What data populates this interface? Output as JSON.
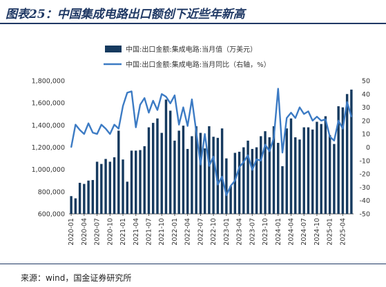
{
  "figure": {
    "title": "图表25：中国集成电路出口额创下近些年新高",
    "source": "来源：wind，国金证券研究所"
  },
  "chart_data": {
    "type": "bar+line",
    "x": [
      "2020-01",
      "2020-02",
      "2020-03",
      "2020-04",
      "2020-05",
      "2020-06",
      "2020-07",
      "2020-08",
      "2020-09",
      "2020-10",
      "2020-11",
      "2020-12",
      "2021-01",
      "2021-02",
      "2021-03",
      "2021-04",
      "2021-05",
      "2021-06",
      "2021-07",
      "2021-08",
      "2021-09",
      "2021-10",
      "2021-11",
      "2021-12",
      "2022-01",
      "2022-02",
      "2022-03",
      "2022-04",
      "2022-05",
      "2022-06",
      "2022-07",
      "2022-08",
      "2022-09",
      "2022-10",
      "2022-11",
      "2022-12",
      "2023-01",
      "2023-02",
      "2023-03",
      "2023-04",
      "2023-05",
      "2023-06",
      "2023-07",
      "2023-08",
      "2023-09",
      "2023-10",
      "2023-11",
      "2023-12",
      "2024-01",
      "2024-02",
      "2024-03",
      "2024-04",
      "2024-05",
      "2024-06",
      "2024-07",
      "2024-08",
      "2024-09",
      "2024-10",
      "2024-11",
      "2024-12",
      "2025-01",
      "2025-02",
      "2025-03",
      "2025-04",
      "2025-05",
      "2025-06"
    ],
    "xtick_labels": [
      "2020-01",
      "2020-04",
      "2020-07",
      "2020-10",
      "2021-01",
      "2021-04",
      "2021-07",
      "2021-10",
      "2022-01",
      "2022-04",
      "2022-07",
      "2022-10",
      "2023-01",
      "2023-04",
      "2023-07",
      "2023-10",
      "2024-01",
      "2024-04",
      "2024-07",
      "2024-10",
      "2025-01",
      "2025-04"
    ],
    "series": [
      {
        "name": "中国:出口金额:集成电路:当月值（万美元）",
        "kind": "bar",
        "axis": "left",
        "color": "#163a5f",
        "values": [
          760000,
          740000,
          880000,
          870000,
          900000,
          905000,
          1070000,
          1050000,
          1095000,
          1070000,
          1110000,
          1350000,
          1090000,
          890000,
          1170000,
          1170000,
          1175000,
          1210000,
          1380000,
          1420000,
          1460000,
          1330000,
          1630000,
          1530000,
          1260000,
          1350000,
          1395000,
          1185000,
          1300000,
          1390000,
          1330000,
          1190000,
          1390000,
          1295000,
          1285000,
          1370000,
          1100000,
          850000,
          1150000,
          1160000,
          1200000,
          1260000,
          1185000,
          1200000,
          1300000,
          1345000,
          1290000,
          1390000,
          1240000,
          1030000,
          1370000,
          1460000,
          1290000,
          1270000,
          1380000,
          1380000,
          1360000,
          1430000,
          1410000,
          1480000,
          1310000,
          1230000,
          1570000,
          1560000,
          1680000,
          1720000
        ]
      },
      {
        "name": "中国:出口金额:集成电路:当月同比（右轴，%）",
        "kind": "line",
        "axis": "right",
        "color": "#3c7bc4",
        "values": [
          0,
          17,
          13,
          10,
          18,
          11,
          10,
          17,
          14,
          10,
          17,
          14,
          31,
          41,
          42,
          15,
          32,
          37,
          26,
          35,
          28,
          40,
          38,
          33,
          39,
          17,
          30,
          16,
          36,
          12,
          -13,
          10,
          -14,
          -7,
          -28,
          -22,
          -36,
          -29,
          -25,
          -15,
          -11,
          -6,
          -17,
          -9,
          -10,
          2,
          -3,
          7,
          44,
          -4,
          22,
          26,
          22,
          30,
          25,
          27,
          20,
          23,
          20,
          21,
          8,
          5,
          20,
          14,
          34,
          23
        ]
      }
    ],
    "y_left": {
      "range": [
        600000,
        1800000
      ],
      "ticks": [
        "600,000",
        "800,000",
        "1,000,000",
        "1,200,000",
        "1,400,000",
        "1,600,000",
        "1,800,000"
      ]
    },
    "y_right": {
      "range": [
        -50,
        50
      ],
      "ticks": [
        "-50",
        "-40",
        "-30",
        "-20",
        "-10",
        "0",
        "10",
        "20",
        "30",
        "40",
        "50"
      ]
    },
    "grid": false,
    "legend_position": "top-center"
  }
}
